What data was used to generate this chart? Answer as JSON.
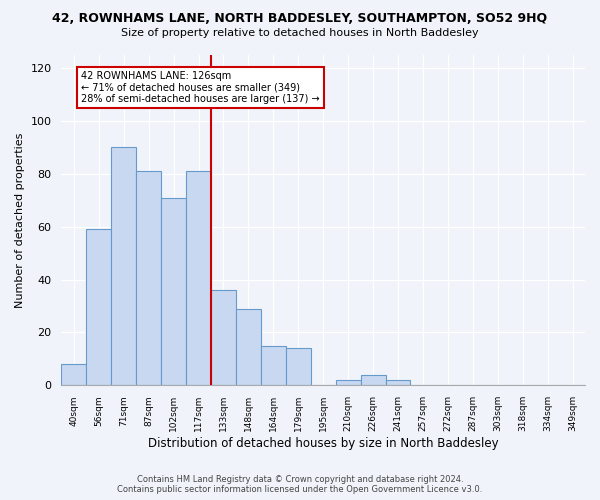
{
  "title": "42, ROWNHAMS LANE, NORTH BADDESLEY, SOUTHAMPTON, SO52 9HQ",
  "subtitle": "Size of property relative to detached houses in North Baddesley",
  "xlabel": "Distribution of detached houses by size in North Baddesley",
  "ylabel": "Number of detached properties",
  "bar_labels": [
    "40sqm",
    "56sqm",
    "71sqm",
    "87sqm",
    "102sqm",
    "117sqm",
    "133sqm",
    "148sqm",
    "164sqm",
    "179sqm",
    "195sqm",
    "210sqm",
    "226sqm",
    "241sqm",
    "257sqm",
    "272sqm",
    "287sqm",
    "303sqm",
    "318sqm",
    "334sqm",
    "349sqm"
  ],
  "bar_values": [
    8,
    59,
    90,
    81,
    71,
    81,
    36,
    29,
    15,
    14,
    0,
    2,
    4,
    2,
    0,
    0,
    0,
    0,
    0,
    0,
    0
  ],
  "bar_color": "#c8d8f0",
  "bar_edge_color": "#6699cc",
  "vline_x": 5.5,
  "vline_color": "#cc0000",
  "annotation_title": "42 ROWNHAMS LANE: 126sqm",
  "annotation_line1": "← 71% of detached houses are smaller (349)",
  "annotation_line2": "28% of semi-detached houses are larger (137) →",
  "annotation_box_color": "#ffffff",
  "annotation_box_edge": "#cc0000",
  "ylim": [
    0,
    125
  ],
  "yticks": [
    0,
    20,
    40,
    60,
    80,
    100,
    120
  ],
  "footer1": "Contains HM Land Registry data © Crown copyright and database right 2024.",
  "footer2": "Contains public sector information licensed under the Open Government Licence v3.0.",
  "background_color": "#f0f4fa",
  "plot_bg_color": "#f0f4fa"
}
